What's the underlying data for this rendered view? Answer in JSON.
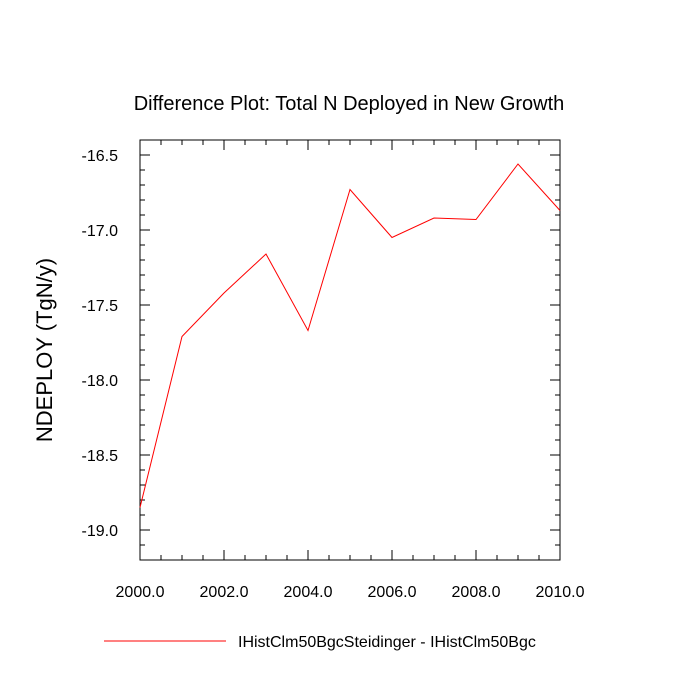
{
  "chart_data": {
    "type": "line",
    "title": "Difference Plot: Total N Deployed in New Growth",
    "xlabel": "",
    "ylabel": "NDEPLOY  (TgN/y)",
    "xlim": [
      2000,
      2010
    ],
    "ylim": [
      -19.2,
      -16.4
    ],
    "x_ticks": [
      "2000.0",
      "2002.0",
      "2004.0",
      "2006.0",
      "2008.0",
      "2010.0"
    ],
    "x_tick_values": [
      2000,
      2002,
      2004,
      2006,
      2008,
      2010
    ],
    "y_ticks": [
      "-16.5",
      "-17.0",
      "-17.5",
      "-18.0",
      "-18.5",
      "-19.0"
    ],
    "y_tick_values": [
      -16.5,
      -17.0,
      -17.5,
      -18.0,
      -18.5,
      -19.0
    ],
    "grid": false,
    "legend_position": "bottom",
    "x": [
      2000,
      2001,
      2002,
      2003,
      2004,
      2005,
      2006,
      2007,
      2008,
      2009,
      2010
    ],
    "series": [
      {
        "name": "IHistClm50BgcSteidinger - IHistClm50Bgc",
        "color": "#ff0000",
        "values": [
          -18.85,
          -17.71,
          -17.42,
          -17.16,
          -17.67,
          -16.73,
          -17.05,
          -16.92,
          -16.93,
          -16.56,
          -16.87
        ]
      }
    ]
  }
}
